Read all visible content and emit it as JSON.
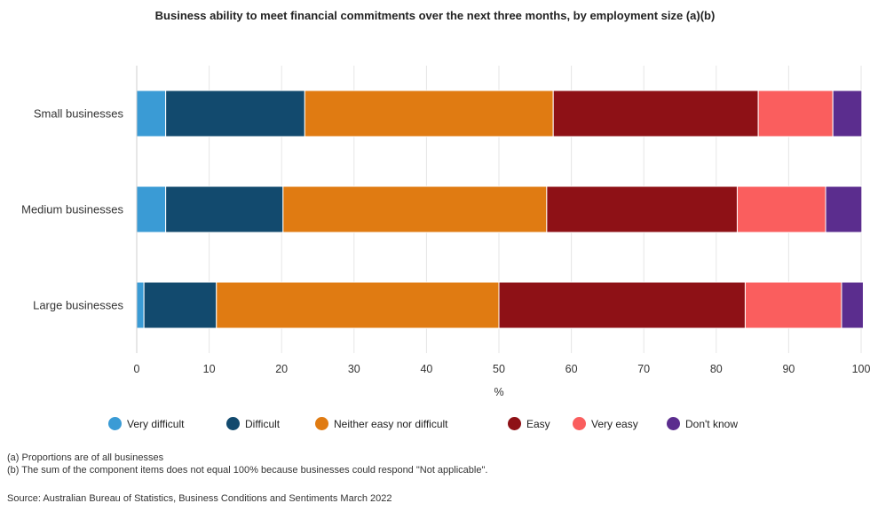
{
  "chart_data": {
    "type": "bar",
    "orientation": "horizontal",
    "stacked": true,
    "title": "Business ability to meet financial commitments over the next three months, by employment size (a)(b)",
    "xlabel": "%",
    "ylabel": "",
    "xlim": [
      0,
      100
    ],
    "xticks": [
      "0",
      "10",
      "20",
      "30",
      "40",
      "50",
      "60",
      "70",
      "80",
      "90",
      "100"
    ],
    "grid": true,
    "legend_position": "bottom",
    "categories": [
      "Small businesses",
      "Medium businesses",
      "Large businesses"
    ],
    "series": [
      {
        "name": "Very difficult",
        "color": "#3a9bd5",
        "values": [
          4.0,
          4.0,
          1.0
        ]
      },
      {
        "name": "Difficult",
        "color": "#124a6e",
        "values": [
          19.2,
          16.2,
          10.0
        ]
      },
      {
        "name": "Neither easy nor difficult",
        "color": "#e07b12",
        "values": [
          34.3,
          36.4,
          39.0
        ]
      },
      {
        "name": "Easy",
        "color": "#8e1116",
        "values": [
          28.3,
          26.3,
          34.0
        ]
      },
      {
        "name": "Very easy",
        "color": "#fa5e5e",
        "values": [
          10.3,
          12.2,
          13.3
        ]
      },
      {
        "name": "Don't know",
        "color": "#5b2d8e",
        "values": [
          4.0,
          5.0,
          3.0
        ]
      }
    ]
  },
  "notes": {
    "a": "(a) Proportions are of all businesses",
    "b": "(b) The sum of the component items does not equal 100% because businesses could respond \"Not applicable\"."
  },
  "source": "Source: Australian Bureau of Statistics, Business Conditions and Sentiments March 2022"
}
